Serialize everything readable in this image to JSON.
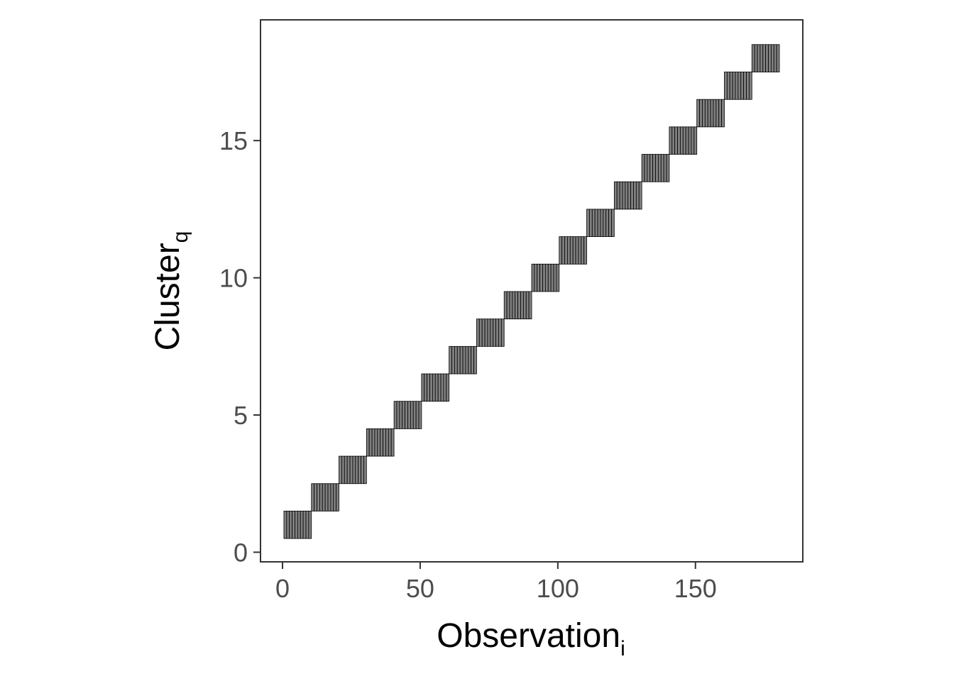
{
  "chart_data": {
    "type": "heatmap",
    "title": "",
    "xlabel": "Observation",
    "xlabel_subscript": "i",
    "ylabel": "Cluster",
    "ylabel_subscript": "q",
    "xlim": [
      -8,
      189
    ],
    "ylim": [
      -0.35,
      19.4
    ],
    "xticks": [
      0,
      50,
      100,
      150
    ],
    "yticks": [
      0,
      5,
      10,
      15
    ],
    "grid": false,
    "legend": "none",
    "fill_color": "#808080",
    "line_color": "#000000",
    "blocks": [
      {
        "cluster": 1,
        "obs_start": 1,
        "obs_end": 10
      },
      {
        "cluster": 2,
        "obs_start": 11,
        "obs_end": 20
      },
      {
        "cluster": 3,
        "obs_start": 21,
        "obs_end": 30
      },
      {
        "cluster": 4,
        "obs_start": 31,
        "obs_end": 40
      },
      {
        "cluster": 5,
        "obs_start": 41,
        "obs_end": 50
      },
      {
        "cluster": 6,
        "obs_start": 51,
        "obs_end": 60
      },
      {
        "cluster": 7,
        "obs_start": 61,
        "obs_end": 70
      },
      {
        "cluster": 8,
        "obs_start": 71,
        "obs_end": 80
      },
      {
        "cluster": 9,
        "obs_start": 81,
        "obs_end": 90
      },
      {
        "cluster": 10,
        "obs_start": 91,
        "obs_end": 100
      },
      {
        "cluster": 11,
        "obs_start": 101,
        "obs_end": 110
      },
      {
        "cluster": 12,
        "obs_start": 111,
        "obs_end": 120
      },
      {
        "cluster": 13,
        "obs_start": 121,
        "obs_end": 130
      },
      {
        "cluster": 14,
        "obs_start": 131,
        "obs_end": 140
      },
      {
        "cluster": 15,
        "obs_start": 141,
        "obs_end": 150
      },
      {
        "cluster": 16,
        "obs_start": 151,
        "obs_end": 160
      },
      {
        "cluster": 17,
        "obs_start": 161,
        "obs_end": 170
      },
      {
        "cluster": 18,
        "obs_start": 171,
        "obs_end": 180
      }
    ]
  }
}
